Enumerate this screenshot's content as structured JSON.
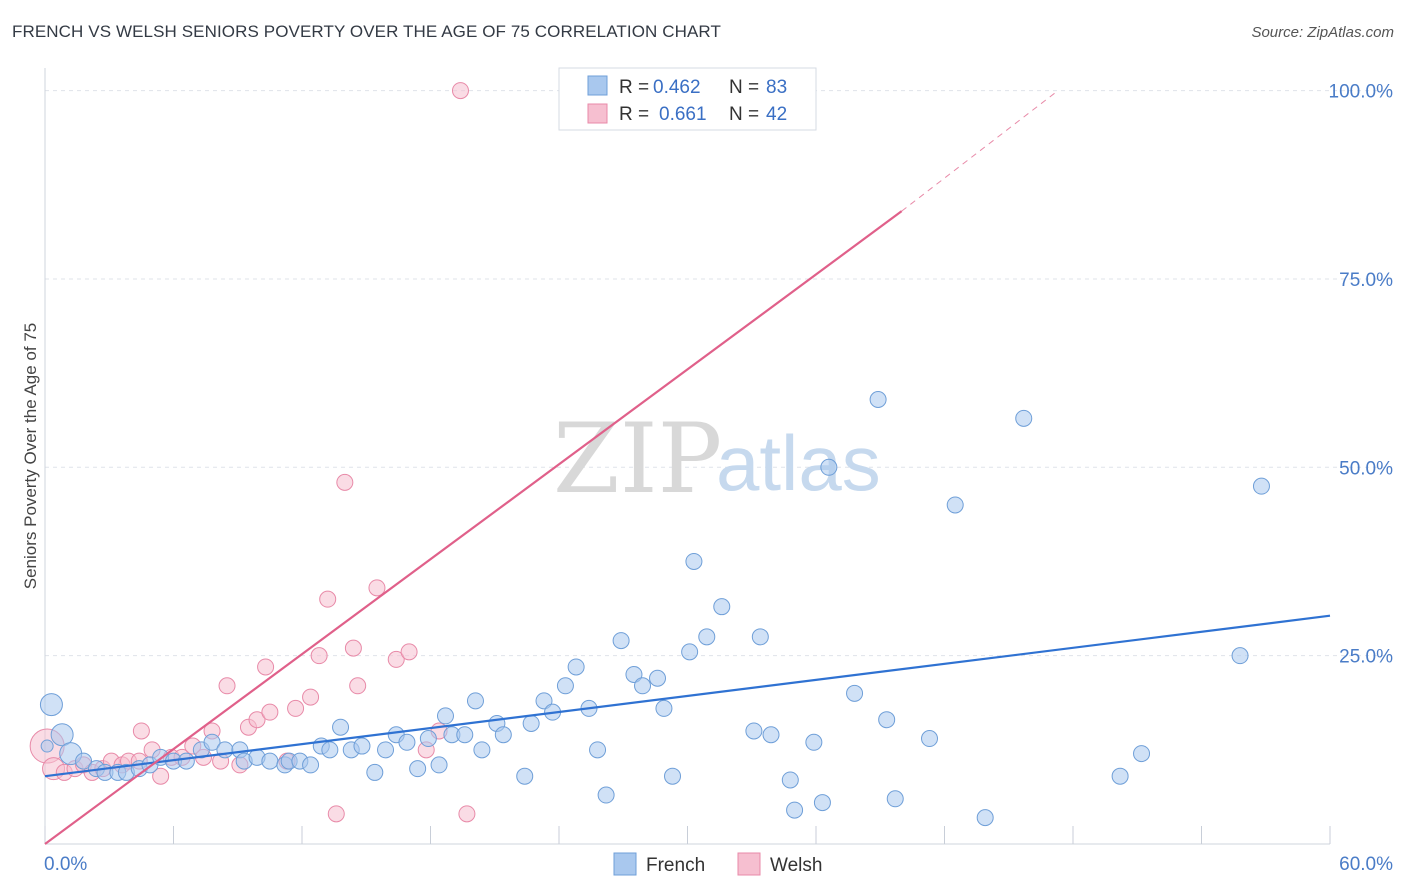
{
  "title": "FRENCH VS WELSH SENIORS POVERTY OVER THE AGE OF 75 CORRELATION CHART",
  "source": "Source: ZipAtlas.com",
  "watermark": {
    "zip": "ZIP",
    "atlas": "atlas"
  },
  "colors": {
    "french_fill": "#a9c8ee",
    "french_stroke": "#6f9fd8",
    "french_line": "#2f72d2",
    "welsh_fill": "#f6bfd0",
    "welsh_stroke": "#e88aa8",
    "welsh_line": "#e0608a",
    "grid": "#dfe3ea",
    "tick_text": "#4a7cc7"
  },
  "legend": {
    "french": {
      "r_label": "R = ",
      "r_value": "0.462",
      "n_label": "N = ",
      "n_value": "83"
    },
    "welsh": {
      "r_label": "R = ",
      "r_value": "0.661",
      "n_label": "N = ",
      "n_value": "42"
    }
  },
  "chart_data": {
    "type": "scatter",
    "title": "FRENCH VS WELSH SENIORS POVERTY OVER THE AGE OF 75 CORRELATION CHART",
    "xlabel": "",
    "ylabel": "Seniors Poverty Over the Age of 75",
    "xlim": [
      0,
      60
    ],
    "ylim": [
      0,
      103
    ],
    "x_tick_labels": [
      {
        "value": 0,
        "label": "0.0%"
      },
      {
        "value": 60,
        "label": "60.0%"
      }
    ],
    "y_tick_labels": [
      {
        "value": 25,
        "label": "25.0%"
      },
      {
        "value": 50,
        "label": "50.0%"
      },
      {
        "value": 75,
        "label": "75.0%"
      },
      {
        "value": 100,
        "label": "100.0%"
      }
    ],
    "x_minor_ticks": [
      0,
      6,
      12,
      18,
      24,
      30,
      36,
      42,
      48,
      54,
      60
    ],
    "series": [
      {
        "name": "French",
        "r": 0.462,
        "n": 83,
        "trend": {
          "x0": 0,
          "y0": 9.0,
          "x1": 60,
          "y1": 30.3
        },
        "points": [
          [
            0.3,
            18.5
          ],
          [
            0.8,
            14.5
          ],
          [
            1.2,
            12
          ],
          [
            1.8,
            11
          ],
          [
            2.4,
            10
          ],
          [
            2.8,
            9.5
          ],
          [
            3.4,
            9.5
          ],
          [
            3.8,
            9.5
          ],
          [
            4.4,
            10
          ],
          [
            4.9,
            10.5
          ],
          [
            5.4,
            11.5
          ],
          [
            6,
            11
          ],
          [
            6.6,
            11
          ],
          [
            7.3,
            12.5
          ],
          [
            7.8,
            13.5
          ],
          [
            8.4,
            12.5
          ],
          [
            9.1,
            12.5
          ],
          [
            9.3,
            11
          ],
          [
            9.9,
            11.5
          ],
          [
            10.5,
            11
          ],
          [
            11.2,
            10.5
          ],
          [
            11.4,
            11
          ],
          [
            11.9,
            11
          ],
          [
            12.4,
            10.5
          ],
          [
            12.9,
            13
          ],
          [
            13.3,
            12.5
          ],
          [
            13.8,
            15.5
          ],
          [
            14.3,
            12.5
          ],
          [
            14.8,
            13
          ],
          [
            15.4,
            9.5
          ],
          [
            15.9,
            12.5
          ],
          [
            16.4,
            14.5
          ],
          [
            16.9,
            13.5
          ],
          [
            17.4,
            10
          ],
          [
            17.9,
            14
          ],
          [
            18.4,
            10.5
          ],
          [
            18.7,
            17
          ],
          [
            19,
            14.5
          ],
          [
            19.6,
            14.5
          ],
          [
            20.1,
            19
          ],
          [
            20.4,
            12.5
          ],
          [
            21.1,
            16
          ],
          [
            21.4,
            14.5
          ],
          [
            22.4,
            9
          ],
          [
            22.7,
            16
          ],
          [
            23.3,
            19
          ],
          [
            23.7,
            17.5
          ],
          [
            24.3,
            21
          ],
          [
            24.8,
            23.5
          ],
          [
            25.4,
            18
          ],
          [
            25.8,
            12.5
          ],
          [
            26.2,
            6.5
          ],
          [
            26.9,
            27
          ],
          [
            27.5,
            22.5
          ],
          [
            27.9,
            21
          ],
          [
            28.6,
            22
          ],
          [
            28.9,
            18
          ],
          [
            29.3,
            9
          ],
          [
            30.1,
            25.5
          ],
          [
            30.3,
            37.5
          ],
          [
            30.9,
            27.5
          ],
          [
            31.6,
            31.5
          ],
          [
            33.1,
            15
          ],
          [
            33.4,
            27.5
          ],
          [
            33.9,
            14.5
          ],
          [
            34.8,
            8.5
          ],
          [
            35,
            4.5
          ],
          [
            35.9,
            13.5
          ],
          [
            36.3,
            5.5
          ],
          [
            36.6,
            50
          ],
          [
            37.8,
            20
          ],
          [
            38.9,
            59
          ],
          [
            39.3,
            16.5
          ],
          [
            39.7,
            6
          ],
          [
            41.3,
            14
          ],
          [
            42.5,
            45
          ],
          [
            43.9,
            3.5
          ],
          [
            45.7,
            56.5
          ],
          [
            50.2,
            9
          ],
          [
            51.2,
            12
          ],
          [
            55.8,
            25
          ],
          [
            56.8,
            47.5
          ],
          [
            0.1,
            13
          ]
        ]
      },
      {
        "name": "Welsh",
        "r": 0.661,
        "n": 42,
        "trend": {
          "x0": 0,
          "y0": 0,
          "x1": 40,
          "y1": 84
        },
        "trend_extension": {
          "x0": 40,
          "y0": 84,
          "x1": 47.3,
          "y1": 100
        },
        "points": [
          [
            0.1,
            13
          ],
          [
            0.4,
            10
          ],
          [
            0.9,
            9.5
          ],
          [
            1.4,
            10
          ],
          [
            1.8,
            10.5
          ],
          [
            2.2,
            9.5
          ],
          [
            2.7,
            10
          ],
          [
            3.1,
            11
          ],
          [
            3.6,
            10.5
          ],
          [
            3.9,
            11
          ],
          [
            4.4,
            11
          ],
          [
            4.5,
            15
          ],
          [
            5,
            12.5
          ],
          [
            5.4,
            9
          ],
          [
            5.9,
            11.5
          ],
          [
            6.4,
            11.5
          ],
          [
            6.9,
            13
          ],
          [
            7.4,
            11.5
          ],
          [
            7.8,
            15
          ],
          [
            8.2,
            11
          ],
          [
            8.5,
            21
          ],
          [
            9.1,
            10.5
          ],
          [
            9.5,
            15.5
          ],
          [
            9.9,
            16.5
          ],
          [
            10.3,
            23.5
          ],
          [
            10.5,
            17.5
          ],
          [
            11.3,
            11
          ],
          [
            11.7,
            18
          ],
          [
            12.4,
            19.5
          ],
          [
            12.8,
            25
          ],
          [
            13.2,
            32.5
          ],
          [
            13.6,
            4
          ],
          [
            14,
            48
          ],
          [
            14.4,
            26
          ],
          [
            14.6,
            21
          ],
          [
            15.5,
            34
          ],
          [
            16.4,
            24.5
          ],
          [
            17,
            25.5
          ],
          [
            17.8,
            12.5
          ],
          [
            18.4,
            15
          ],
          [
            19.4,
            100
          ],
          [
            19.7,
            4
          ]
        ]
      }
    ],
    "legend_position": "top-center"
  }
}
